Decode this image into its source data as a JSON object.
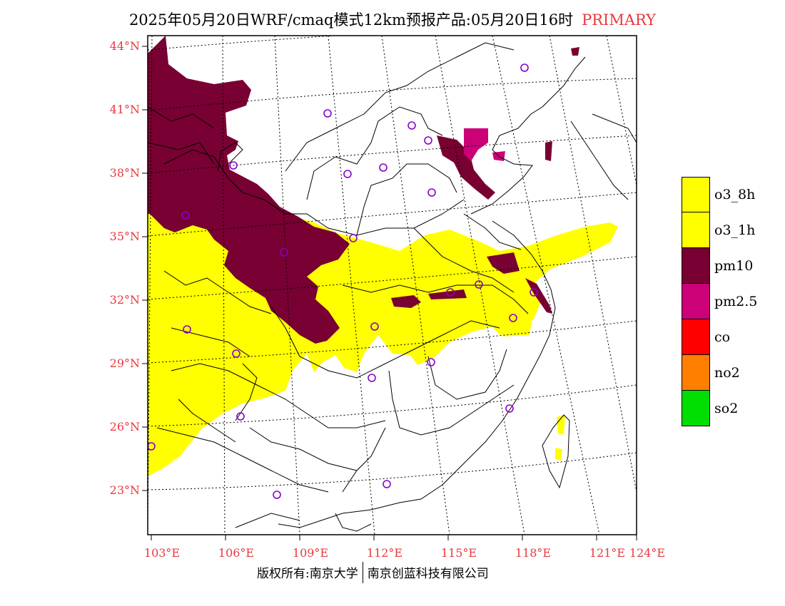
{
  "header": {
    "title": "2025年05月20日WRF/cmaq模式12km预报产品:05月20日16时",
    "tag": "PRIMARY"
  },
  "axes": {
    "lat_labels": [
      "44°N",
      "41°N",
      "38°N",
      "35°N",
      "32°N",
      "29°N",
      "26°N",
      "23°N"
    ],
    "lon_labels": [
      "103°E",
      "106°E",
      "109°E",
      "112°E",
      "115°E",
      "118°E",
      "121°E",
      "124°E"
    ]
  },
  "legend": [
    {
      "label": "o3_8h",
      "color": "#ffff00"
    },
    {
      "label": "o3_1h",
      "color": "#ffff00"
    },
    {
      "label": "pm10",
      "color": "#780032"
    },
    {
      "label": "pm2.5",
      "color": "#cc0077"
    },
    {
      "label": "co",
      "color": "#ff0000"
    },
    {
      "label": "no2",
      "color": "#ff7f00"
    },
    {
      "label": "so2",
      "color": "#00dd00"
    }
  ],
  "footer": {
    "copyright": "版权所有:南京大学",
    "company": "南京创蓝科技有限公司"
  },
  "colors": {
    "accent_red": "#e8383d",
    "yellow": "#ffff00",
    "maroon": "#780032",
    "magenta": "#cc0077",
    "station_marker": "#8800cc"
  }
}
